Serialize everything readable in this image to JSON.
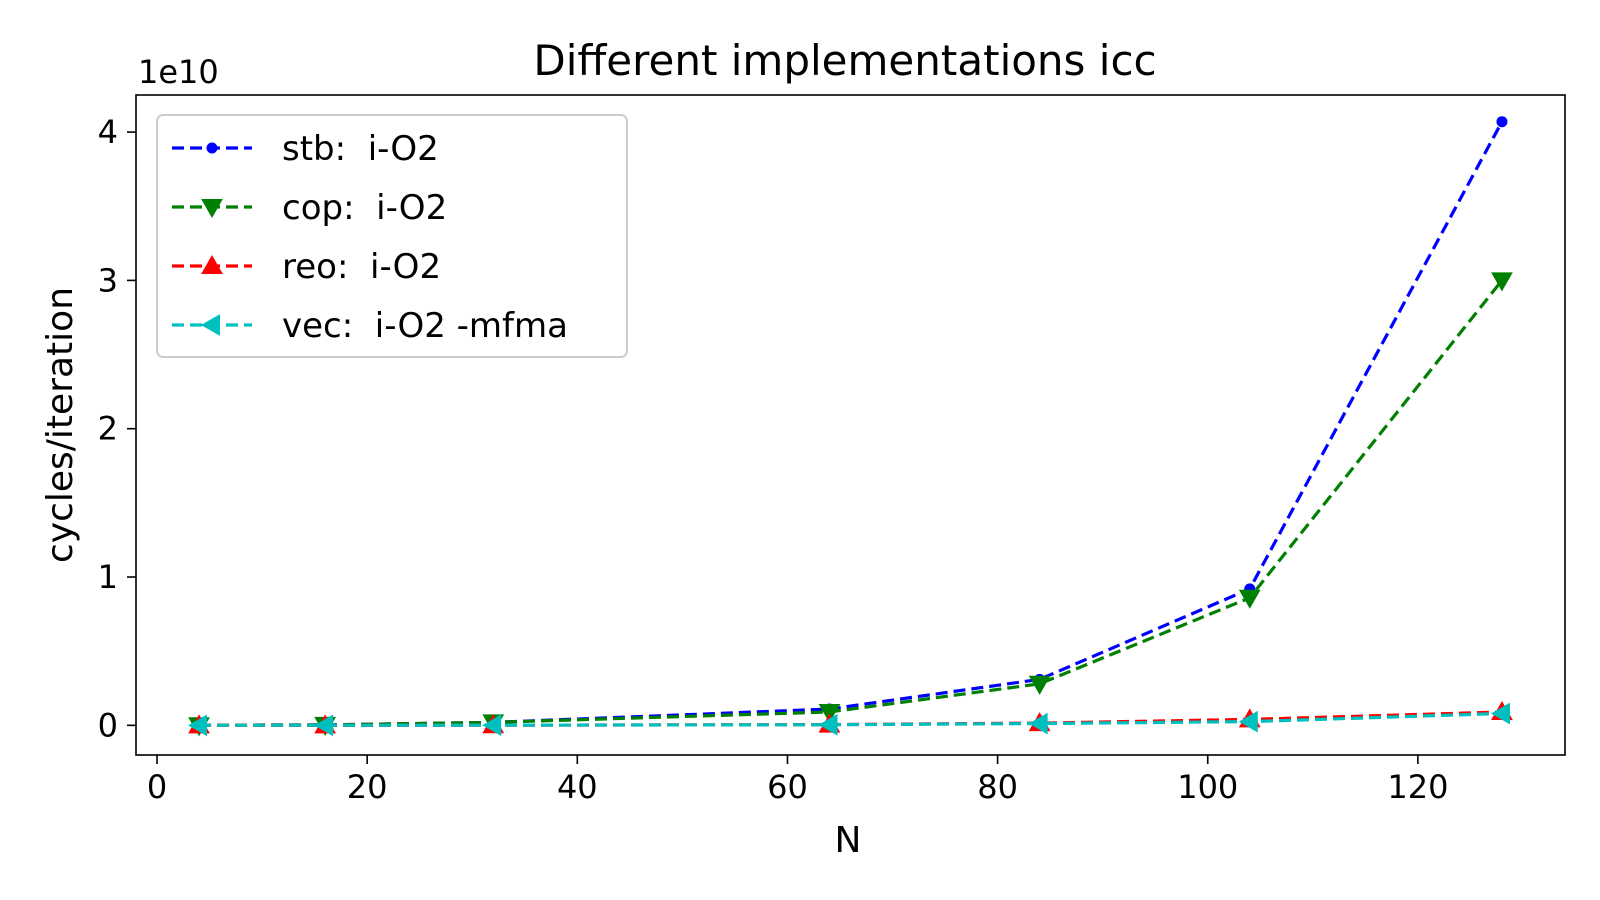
{
  "chart_data": {
    "type": "line",
    "title": "Different implementations icc",
    "xlabel": "N",
    "ylabel": "cycles/iteration",
    "y_offset_label": "1e10",
    "y_scale_factor": 10000000000,
    "xlim": [
      -2,
      134
    ],
    "ylim": [
      -0.2,
      4.25
    ],
    "xticks": [
      0,
      20,
      40,
      60,
      80,
      100,
      120
    ],
    "yticks": [
      0,
      1,
      2,
      3,
      4
    ],
    "x": [
      4,
      16,
      32,
      64,
      84,
      104,
      128
    ],
    "legend_position": "upper-left",
    "series": [
      {
        "name": "stb:  i-O2",
        "color": "#0000ff",
        "marker": "point",
        "values": [
          0.001,
          0.003,
          0.02,
          0.11,
          0.31,
          0.92,
          4.07
        ]
      },
      {
        "name": "cop:  i-O2",
        "color": "#008000",
        "marker": "triangle-down",
        "values": [
          0.001,
          0.003,
          0.02,
          0.09,
          0.28,
          0.86,
          3.0
        ]
      },
      {
        "name": "reo:  i-O2",
        "color": "#ff0000",
        "marker": "triangle-up",
        "values": [
          0.0,
          0.0,
          0.001,
          0.005,
          0.015,
          0.04,
          0.09
        ]
      },
      {
        "name": "vec:  i-O2 -mfma",
        "color": "#00bfbf",
        "marker": "triangle-left",
        "values": [
          0.0,
          0.0,
          0.001,
          0.004,
          0.012,
          0.025,
          0.08
        ]
      }
    ]
  }
}
